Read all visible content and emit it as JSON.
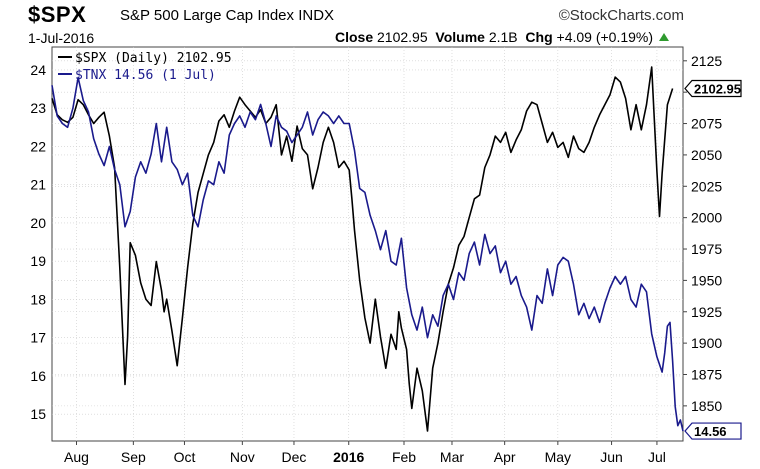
{
  "header": {
    "symbol": "$SPX",
    "name": "S&P 500 Large Cap Index",
    "exchange": "INDX",
    "brand": "©StockCharts.com",
    "date": "1-Jul-2016",
    "close_label": "Close",
    "close_value": "2102.95",
    "volume_label": "Volume",
    "volume_value": "2.1B",
    "chg_label": "Chg",
    "chg_value": "+4.09 (+0.19%)"
  },
  "colors": {
    "spx": "#000000",
    "tnx": "#1a1a8c",
    "grid": "#cccccc",
    "axis": "#444444"
  },
  "chart_data": {
    "type": "line",
    "legend_placement": "top-left",
    "grid": true,
    "x_ticks": [
      {
        "label": "Aug",
        "t": 0.047,
        "bold": false
      },
      {
        "label": "Sep",
        "t": 0.156,
        "bold": false
      },
      {
        "label": "Oct",
        "t": 0.254,
        "bold": false
      },
      {
        "label": "Nov",
        "t": 0.365,
        "bold": false
      },
      {
        "label": "Dec",
        "t": 0.464,
        "bold": false
      },
      {
        "label": "2016",
        "t": 0.569,
        "bold": true
      },
      {
        "label": "Feb",
        "t": 0.675,
        "bold": false
      },
      {
        "label": "Mar",
        "t": 0.767,
        "bold": false
      },
      {
        "label": "Apr",
        "t": 0.868,
        "bold": false
      },
      {
        "label": "May",
        "t": 0.97,
        "bold": false
      },
      {
        "label": "Jun",
        "t": 1.073,
        "bold": false
      },
      {
        "label": "Jul",
        "t": 1.16,
        "bold": false
      }
    ],
    "y_left": {
      "range": [
        14.3,
        24.6
      ],
      "ticks": [
        15,
        16,
        17,
        18,
        19,
        20,
        21,
        22,
        23,
        24
      ]
    },
    "y_right": {
      "range": [
        1822,
        2136
      ],
      "ticks": [
        1850,
        1875,
        1900,
        1925,
        1950,
        1975,
        2000,
        2025,
        2050,
        2075,
        2100,
        2125
      ]
    },
    "series": [
      {
        "name": "$SPX (Daily) 2102.95",
        "axis": "right",
        "last_value_label": "2102.95",
        "points": [
          [
            0,
            2095
          ],
          [
            0.01,
            2082
          ],
          [
            0.02,
            2078
          ],
          [
            0.03,
            2076
          ],
          [
            0.04,
            2080
          ],
          [
            0.05,
            2094
          ],
          [
            0.06,
            2090
          ],
          [
            0.07,
            2082
          ],
          [
            0.08,
            2075
          ],
          [
            0.09,
            2080
          ],
          [
            0.1,
            2084
          ],
          [
            0.11,
            2065
          ],
          [
            0.12,
            2040
          ],
          [
            0.13,
            1960
          ],
          [
            0.14,
            1867
          ],
          [
            0.145,
            1905
          ],
          [
            0.15,
            1980
          ],
          [
            0.16,
            1970
          ],
          [
            0.17,
            1948
          ],
          [
            0.18,
            1935
          ],
          [
            0.19,
            1930
          ],
          [
            0.2,
            1965
          ],
          [
            0.21,
            1942
          ],
          [
            0.215,
            1925
          ],
          [
            0.22,
            1935
          ],
          [
            0.23,
            1910
          ],
          [
            0.24,
            1882
          ],
          [
            0.25,
            1920
          ],
          [
            0.26,
            1960
          ],
          [
            0.27,
            1995
          ],
          [
            0.28,
            2020
          ],
          [
            0.29,
            2035
          ],
          [
            0.3,
            2050
          ],
          [
            0.31,
            2060
          ],
          [
            0.32,
            2077
          ],
          [
            0.33,
            2082
          ],
          [
            0.34,
            2072
          ],
          [
            0.35,
            2085
          ],
          [
            0.36,
            2096
          ],
          [
            0.37,
            2090
          ],
          [
            0.38,
            2085
          ],
          [
            0.39,
            2080
          ],
          [
            0.4,
            2086
          ],
          [
            0.41,
            2075
          ],
          [
            0.42,
            2080
          ],
          [
            0.43,
            2090
          ],
          [
            0.44,
            2050
          ],
          [
            0.45,
            2065
          ],
          [
            0.46,
            2045
          ],
          [
            0.47,
            2073
          ],
          [
            0.48,
            2055
          ],
          [
            0.49,
            2050
          ],
          [
            0.5,
            2023
          ],
          [
            0.51,
            2040
          ],
          [
            0.52,
            2060
          ],
          [
            0.53,
            2072
          ],
          [
            0.54,
            2060
          ],
          [
            0.55,
            2040
          ],
          [
            0.56,
            2045
          ],
          [
            0.57,
            2038
          ],
          [
            0.575,
            2015
          ],
          [
            0.58,
            1990
          ],
          [
            0.59,
            1950
          ],
          [
            0.6,
            1920
          ],
          [
            0.61,
            1900
          ],
          [
            0.62,
            1935
          ],
          [
            0.63,
            1905
          ],
          [
            0.64,
            1880
          ],
          [
            0.65,
            1907
          ],
          [
            0.66,
            1895
          ],
          [
            0.665,
            1925
          ],
          [
            0.67,
            1912
          ],
          [
            0.68,
            1895
          ],
          [
            0.685,
            1868
          ],
          [
            0.69,
            1848
          ],
          [
            0.7,
            1880
          ],
          [
            0.71,
            1862
          ],
          [
            0.72,
            1830
          ],
          [
            0.73,
            1880
          ],
          [
            0.74,
            1900
          ],
          [
            0.75,
            1925
          ],
          [
            0.76,
            1947
          ],
          [
            0.77,
            1960
          ],
          [
            0.78,
            1978
          ],
          [
            0.79,
            1985
          ],
          [
            0.8,
            2000
          ],
          [
            0.81,
            2015
          ],
          [
            0.82,
            2018
          ],
          [
            0.83,
            2040
          ],
          [
            0.84,
            2050
          ],
          [
            0.85,
            2065
          ],
          [
            0.86,
            2060
          ],
          [
            0.87,
            2068
          ],
          [
            0.88,
            2052
          ],
          [
            0.89,
            2062
          ],
          [
            0.9,
            2070
          ],
          [
            0.91,
            2085
          ],
          [
            0.92,
            2092
          ],
          [
            0.93,
            2090
          ],
          [
            0.94,
            2075
          ],
          [
            0.95,
            2060
          ],
          [
            0.96,
            2068
          ],
          [
            0.97,
            2056
          ],
          [
            0.98,
            2060
          ],
          [
            0.99,
            2048
          ],
          [
            1,
            2065
          ],
          [
            1.01,
            2055
          ],
          [
            1.02,
            2052
          ],
          [
            1.03,
            2060
          ],
          [
            1.04,
            2072
          ],
          [
            1.05,
            2082
          ],
          [
            1.06,
            2090
          ],
          [
            1.07,
            2098
          ],
          [
            1.08,
            2112
          ],
          [
            1.09,
            2108
          ],
          [
            1.1,
            2095
          ],
          [
            1.11,
            2070
          ],
          [
            1.12,
            2090
          ],
          [
            1.13,
            2070
          ],
          [
            1.14,
            2090
          ],
          [
            1.15,
            2120
          ],
          [
            1.16,
            2037
          ],
          [
            1.165,
            2001
          ],
          [
            1.17,
            2035
          ],
          [
            1.18,
            2090
          ],
          [
            1.19,
            2102.95
          ]
        ]
      },
      {
        "name": "$TNX 14.56 (1 Jul)",
        "axis": "left",
        "last_value_label": "14.56",
        "points": [
          [
            0,
            23.6
          ],
          [
            0.01,
            22.8
          ],
          [
            0.02,
            22.6
          ],
          [
            0.03,
            22.5
          ],
          [
            0.04,
            23.0
          ],
          [
            0.05,
            23.8
          ],
          [
            0.06,
            23.2
          ],
          [
            0.07,
            22.9
          ],
          [
            0.08,
            22.2
          ],
          [
            0.09,
            21.8
          ],
          [
            0.1,
            21.5
          ],
          [
            0.11,
            22.0
          ],
          [
            0.12,
            21.4
          ],
          [
            0.13,
            21.0
          ],
          [
            0.14,
            19.9
          ],
          [
            0.15,
            20.3
          ],
          [
            0.16,
            21.2
          ],
          [
            0.17,
            21.6
          ],
          [
            0.18,
            21.3
          ],
          [
            0.19,
            21.8
          ],
          [
            0.2,
            22.6
          ],
          [
            0.21,
            21.6
          ],
          [
            0.22,
            22.5
          ],
          [
            0.23,
            21.6
          ],
          [
            0.24,
            21.4
          ],
          [
            0.25,
            21.0
          ],
          [
            0.26,
            21.3
          ],
          [
            0.27,
            20.2
          ],
          [
            0.28,
            19.9
          ],
          [
            0.29,
            20.6
          ],
          [
            0.3,
            21.1
          ],
          [
            0.31,
            21.0
          ],
          [
            0.32,
            21.6
          ],
          [
            0.33,
            21.3
          ],
          [
            0.34,
            22.3
          ],
          [
            0.35,
            22.6
          ],
          [
            0.36,
            22.8
          ],
          [
            0.37,
            22.5
          ],
          [
            0.38,
            22.9
          ],
          [
            0.39,
            22.7
          ],
          [
            0.4,
            23.1
          ],
          [
            0.41,
            22.6
          ],
          [
            0.42,
            22.0
          ],
          [
            0.43,
            22.8
          ],
          [
            0.44,
            22.5
          ],
          [
            0.45,
            22.4
          ],
          [
            0.46,
            22.1
          ],
          [
            0.47,
            22.3
          ],
          [
            0.48,
            22.5
          ],
          [
            0.49,
            22.9
          ],
          [
            0.5,
            22.3
          ],
          [
            0.51,
            22.7
          ],
          [
            0.52,
            22.9
          ],
          [
            0.53,
            22.8
          ],
          [
            0.54,
            22.6
          ],
          [
            0.55,
            22.8
          ],
          [
            0.56,
            22.6
          ],
          [
            0.57,
            22.6
          ],
          [
            0.58,
            21.9
          ],
          [
            0.59,
            20.9
          ],
          [
            0.6,
            20.8
          ],
          [
            0.61,
            20.2
          ],
          [
            0.62,
            19.8
          ],
          [
            0.63,
            19.3
          ],
          [
            0.64,
            19.8
          ],
          [
            0.65,
            19.0
          ],
          [
            0.66,
            18.9
          ],
          [
            0.67,
            19.6
          ],
          [
            0.68,
            18.3
          ],
          [
            0.69,
            17.6
          ],
          [
            0.7,
            17.2
          ],
          [
            0.71,
            17.8
          ],
          [
            0.72,
            17.0
          ],
          [
            0.73,
            17.6
          ],
          [
            0.74,
            17.3
          ],
          [
            0.75,
            18.1
          ],
          [
            0.76,
            18.4
          ],
          [
            0.77,
            18.0
          ],
          [
            0.78,
            18.7
          ],
          [
            0.79,
            18.5
          ],
          [
            0.8,
            19.2
          ],
          [
            0.81,
            19.5
          ],
          [
            0.82,
            18.9
          ],
          [
            0.83,
            19.7
          ],
          [
            0.84,
            19.2
          ],
          [
            0.85,
            19.4
          ],
          [
            0.86,
            18.7
          ],
          [
            0.87,
            19.0
          ],
          [
            0.88,
            18.4
          ],
          [
            0.89,
            18.6
          ],
          [
            0.9,
            18.1
          ],
          [
            0.91,
            17.8
          ],
          [
            0.92,
            17.2
          ],
          [
            0.93,
            18.1
          ],
          [
            0.94,
            17.9
          ],
          [
            0.95,
            18.8
          ],
          [
            0.96,
            18.1
          ],
          [
            0.97,
            18.9
          ],
          [
            0.98,
            19.1
          ],
          [
            0.99,
            19.0
          ],
          [
            1,
            18.4
          ],
          [
            1.01,
            17.6
          ],
          [
            1.02,
            17.9
          ],
          [
            1.03,
            17.5
          ],
          [
            1.04,
            17.8
          ],
          [
            1.05,
            17.4
          ],
          [
            1.06,
            17.9
          ],
          [
            1.07,
            18.3
          ],
          [
            1.08,
            18.6
          ],
          [
            1.09,
            18.4
          ],
          [
            1.1,
            18.6
          ],
          [
            1.11,
            18.0
          ],
          [
            1.12,
            17.8
          ],
          [
            1.13,
            18.4
          ],
          [
            1.14,
            18.2
          ],
          [
            1.15,
            17.1
          ],
          [
            1.16,
            16.5
          ],
          [
            1.17,
            16.1
          ],
          [
            1.175,
            16.6
          ],
          [
            1.18,
            17.3
          ],
          [
            1.185,
            17.4
          ],
          [
            1.19,
            16.4
          ],
          [
            1.195,
            15.2
          ],
          [
            1.2,
            14.7
          ],
          [
            1.205,
            14.85
          ],
          [
            1.21,
            14.56
          ]
        ]
      }
    ]
  }
}
